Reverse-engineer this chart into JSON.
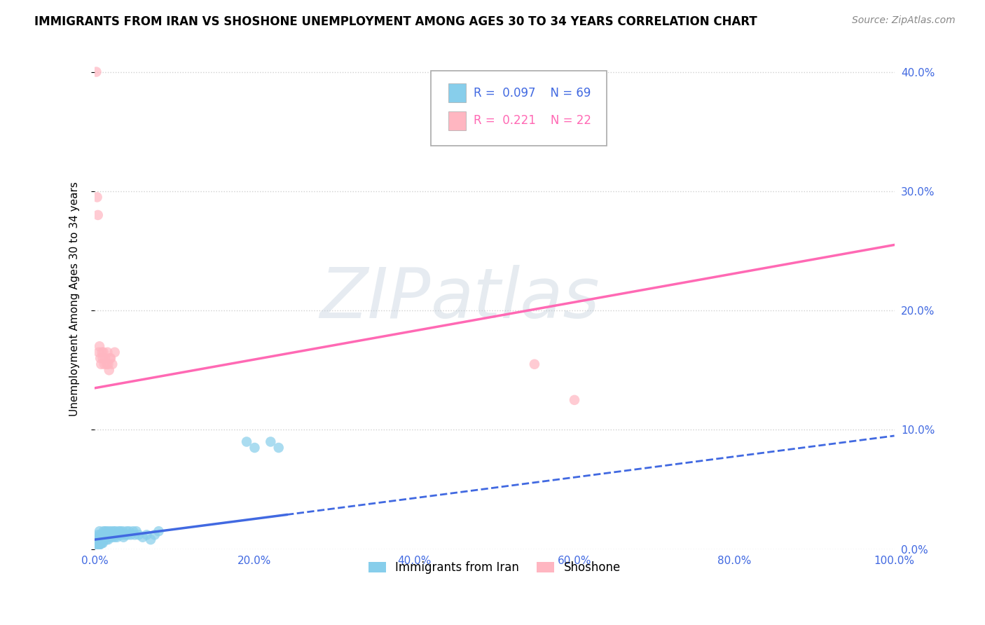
{
  "title": "IMMIGRANTS FROM IRAN VS SHOSHONE UNEMPLOYMENT AMONG AGES 30 TO 34 YEARS CORRELATION CHART",
  "source": "Source: ZipAtlas.com",
  "ylabel": "Unemployment Among Ages 30 to 34 years",
  "xlabel_ticks": [
    "0.0%",
    "20.0%",
    "40.0%",
    "60.0%",
    "80.0%",
    "100.0%"
  ],
  "ytick_labels": [
    "0.0%",
    "10.0%",
    "20.0%",
    "30.0%",
    "40.0%"
  ],
  "xlim": [
    0,
    1.0
  ],
  "ylim": [
    0,
    0.42
  ],
  "legend_entries": [
    {
      "label": "Immigrants from Iran",
      "R": "0.097",
      "N": "69",
      "color": "#87CEEB"
    },
    {
      "label": "Shoshone",
      "R": "0.221",
      "N": "22",
      "color": "#FFB6C1"
    }
  ],
  "iran_scatter_x": [
    0.002,
    0.003,
    0.003,
    0.004,
    0.004,
    0.004,
    0.005,
    0.005,
    0.005,
    0.005,
    0.006,
    0.006,
    0.006,
    0.007,
    0.007,
    0.007,
    0.008,
    0.008,
    0.009,
    0.009,
    0.01,
    0.01,
    0.011,
    0.011,
    0.012,
    0.012,
    0.013,
    0.013,
    0.014,
    0.015,
    0.015,
    0.016,
    0.017,
    0.018,
    0.018,
    0.019,
    0.02,
    0.021,
    0.022,
    0.023,
    0.024,
    0.025,
    0.026,
    0.027,
    0.028,
    0.03,
    0.031,
    0.032,
    0.034,
    0.035,
    0.036,
    0.038,
    0.04,
    0.041,
    0.043,
    0.045,
    0.048,
    0.05,
    0.052,
    0.055,
    0.06,
    0.065,
    0.07,
    0.075,
    0.08,
    0.19,
    0.2,
    0.22,
    0.23
  ],
  "iran_scatter_y": [
    0.005,
    0.003,
    0.01,
    0.005,
    0.008,
    0.012,
    0.003,
    0.005,
    0.007,
    0.01,
    0.004,
    0.006,
    0.015,
    0.005,
    0.008,
    0.012,
    0.005,
    0.01,
    0.005,
    0.012,
    0.005,
    0.01,
    0.008,
    0.015,
    0.008,
    0.012,
    0.01,
    0.015,
    0.01,
    0.008,
    0.015,
    0.01,
    0.008,
    0.012,
    0.015,
    0.01,
    0.012,
    0.015,
    0.01,
    0.012,
    0.015,
    0.01,
    0.015,
    0.012,
    0.01,
    0.015,
    0.012,
    0.015,
    0.012,
    0.015,
    0.01,
    0.012,
    0.015,
    0.012,
    0.015,
    0.012,
    0.015,
    0.012,
    0.015,
    0.012,
    0.01,
    0.012,
    0.008,
    0.012,
    0.015,
    0.09,
    0.085,
    0.09,
    0.085
  ],
  "shoshone_scatter_x": [
    0.002,
    0.003,
    0.004,
    0.005,
    0.006,
    0.007,
    0.008,
    0.009,
    0.01,
    0.011,
    0.012,
    0.013,
    0.015,
    0.016,
    0.017,
    0.018,
    0.019,
    0.02,
    0.022,
    0.025,
    0.55,
    0.6
  ],
  "shoshone_scatter_y": [
    0.4,
    0.295,
    0.28,
    0.165,
    0.17,
    0.16,
    0.155,
    0.165,
    0.16,
    0.165,
    0.155,
    0.16,
    0.155,
    0.165,
    0.155,
    0.15,
    0.16,
    0.16,
    0.155,
    0.165,
    0.155,
    0.125
  ],
  "iran_color": "#87CEEB",
  "shoshone_color": "#FFB6C1",
  "iran_trend_color": "#4169E1",
  "shoshone_trend_color": "#FF69B4",
  "iran_trend_x": [
    0.0,
    1.0
  ],
  "iran_trend_y": [
    0.008,
    0.095
  ],
  "shoshone_trend_x": [
    0.0,
    1.0
  ],
  "shoshone_trend_y": [
    0.135,
    0.255
  ],
  "watermark_text": "ZIP",
  "watermark_text2": "atlas",
  "background_color": "#ffffff",
  "grid_color": "#d0d0d0"
}
